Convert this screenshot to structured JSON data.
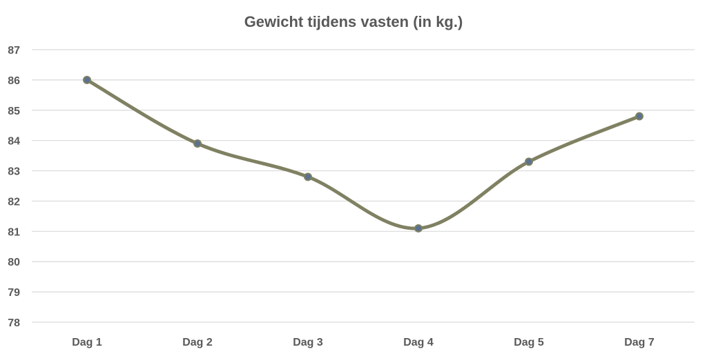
{
  "chart_data": {
    "type": "line",
    "title": "Gewicht tijdens vasten (in kg.)",
    "xlabel": "",
    "ylabel": "",
    "categories": [
      "Dag 1",
      "Dag 2",
      "Dag 3",
      "Dag 4",
      "Dag 5",
      "Dag 7"
    ],
    "series": [
      {
        "values": [
          86.0,
          83.9,
          82.8,
          81.1,
          83.3,
          84.8
        ]
      }
    ],
    "ylim": [
      78,
      87
    ],
    "yticks": [
      "78",
      "79",
      "80",
      "81",
      "82",
      "83",
      "84",
      "85",
      "86",
      "87"
    ],
    "grid": true,
    "smooth": true,
    "legend": "none",
    "colors": {
      "line": "#7f8162",
      "marker_fill": "#5a7290",
      "marker_stroke": "#7f8162",
      "grid": "#d9d9d9",
      "text": "#595959"
    }
  }
}
